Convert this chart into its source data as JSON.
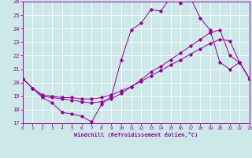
{
  "xlabel": "Windchill (Refroidissement éolien,°C)",
  "bg_color": "#cce8e8",
  "grid_color": "#ffffff",
  "line_color": "#990099",
  "xlim": [
    0,
    23
  ],
  "ylim": [
    17,
    26
  ],
  "xticks": [
    0,
    1,
    2,
    3,
    4,
    5,
    6,
    7,
    8,
    9,
    10,
    11,
    12,
    13,
    14,
    15,
    16,
    17,
    18,
    19,
    20,
    21,
    22,
    23
  ],
  "yticks": [
    17,
    18,
    19,
    20,
    21,
    22,
    23,
    24,
    25,
    26
  ],
  "line1_x": [
    0,
    1,
    2,
    3,
    4,
    5,
    6,
    7,
    8,
    9,
    10,
    11,
    12,
    13,
    14,
    15,
    16,
    17,
    18,
    19,
    20,
    21,
    22,
    23
  ],
  "line1_y": [
    20.3,
    19.6,
    18.9,
    18.5,
    17.8,
    17.7,
    17.5,
    17.1,
    18.4,
    19.0,
    21.7,
    23.9,
    24.4,
    25.4,
    25.3,
    26.3,
    25.9,
    26.3,
    24.8,
    23.9,
    21.5,
    21.0,
    21.5,
    20.3
  ],
  "line2_x": [
    0,
    1,
    2,
    3,
    4,
    5,
    6,
    7,
    8,
    9,
    10,
    11,
    12,
    13,
    14,
    15,
    16,
    17,
    18,
    19,
    20,
    21,
    22,
    23
  ],
  "line2_y": [
    20.3,
    19.6,
    19.0,
    18.9,
    18.8,
    18.7,
    18.6,
    18.5,
    18.6,
    18.8,
    19.2,
    19.7,
    20.2,
    20.8,
    21.2,
    21.7,
    22.2,
    22.7,
    23.2,
    23.7,
    23.9,
    22.0,
    21.5,
    20.3
  ],
  "line3_x": [
    0,
    1,
    2,
    3,
    4,
    5,
    6,
    7,
    8,
    9,
    10,
    11,
    12,
    13,
    14,
    15,
    16,
    17,
    18,
    19,
    20,
    21,
    22,
    23
  ],
  "line3_y": [
    20.3,
    19.6,
    19.1,
    19.0,
    18.9,
    18.9,
    18.8,
    18.8,
    18.9,
    19.1,
    19.4,
    19.7,
    20.1,
    20.5,
    20.9,
    21.3,
    21.7,
    22.1,
    22.5,
    22.9,
    23.2,
    23.1,
    21.5,
    20.3
  ]
}
